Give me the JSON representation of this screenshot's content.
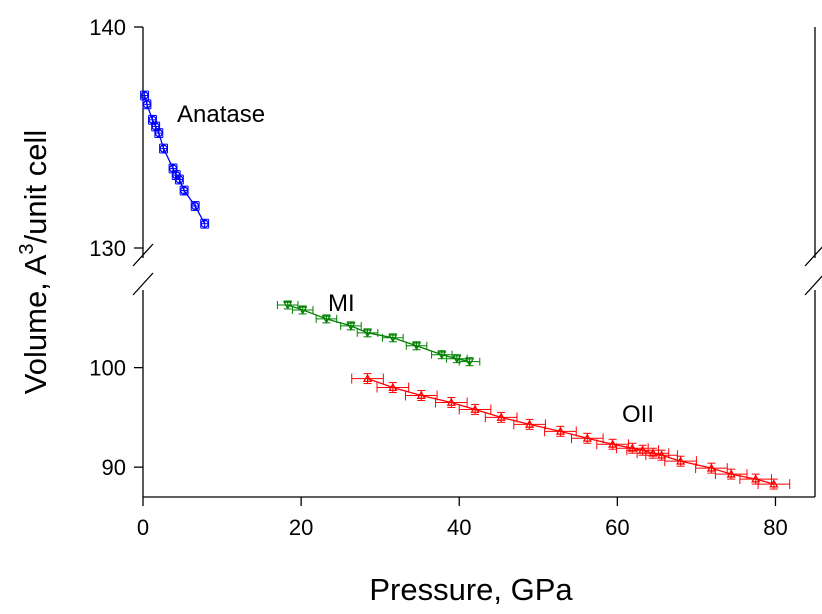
{
  "chart_data": {
    "type": "scatter",
    "xlabel": "Pressure, GPa",
    "ylabel": "Volume, A",
    "ylabel_superscript": "3",
    "ylabel_suffix": "/unit cell",
    "xlim": [
      0,
      85
    ],
    "x_ticks": [
      0,
      20,
      40,
      60,
      80
    ],
    "y_segments": [
      {
        "name": "upper",
        "ylim": [
          130,
          140
        ],
        "ticks": [
          130,
          140
        ]
      },
      {
        "name": "lower",
        "ylim": [
          87,
          107
        ],
        "ticks": [
          90,
          100
        ]
      }
    ],
    "broken_y_axis": true,
    "grid": false,
    "series": [
      {
        "name": "Anatase",
        "segment": "upper",
        "color": "#0000ff",
        "marker": "circle",
        "x": [
          0.2,
          0.5,
          1.2,
          1.6,
          2.0,
          2.6,
          3.8,
          4.2,
          4.6,
          5.2,
          6.6,
          7.8
        ],
        "y": [
          136.9,
          136.5,
          135.8,
          135.5,
          135.2,
          134.5,
          133.6,
          133.3,
          133.1,
          132.6,
          131.9,
          131.1
        ],
        "x_err": 0.5,
        "y_err": 0.2
      },
      {
        "name": "MI",
        "segment": "lower",
        "color": "#008000",
        "marker": "triangle-down",
        "x": [
          18.3,
          20.2,
          23.2,
          26.3,
          28.4,
          31.6,
          34.6,
          37.8,
          39.7,
          41.3
        ],
        "y": [
          106.3,
          105.8,
          104.9,
          104.2,
          103.5,
          103.0,
          102.2,
          101.3,
          100.9,
          100.6
        ],
        "x_err": 1.3,
        "y_err": 0.4
      },
      {
        "name": "OII",
        "segment": "lower",
        "color": "#ff0000",
        "marker": "triangle-up",
        "x": [
          28.4,
          31.6,
          35.2,
          39.0,
          42.0,
          45.3,
          48.9,
          52.8,
          56.2,
          59.4,
          61.9,
          63.2,
          64.5,
          65.6,
          68.0,
          71.9,
          74.4,
          77.5,
          79.8
        ],
        "y": [
          98.9,
          98.0,
          97.2,
          96.5,
          95.8,
          95.0,
          94.3,
          93.6,
          92.9,
          92.3,
          91.9,
          91.7,
          91.4,
          91.2,
          90.6,
          89.9,
          89.3,
          88.8,
          88.3
        ],
        "x_err": 2.0,
        "y_err": 0.5
      }
    ],
    "annotations": [
      {
        "text": "Anatase",
        "series": "Anatase"
      },
      {
        "text": "MI",
        "series": "MI"
      },
      {
        "text": "OII",
        "series": "OII"
      }
    ]
  }
}
